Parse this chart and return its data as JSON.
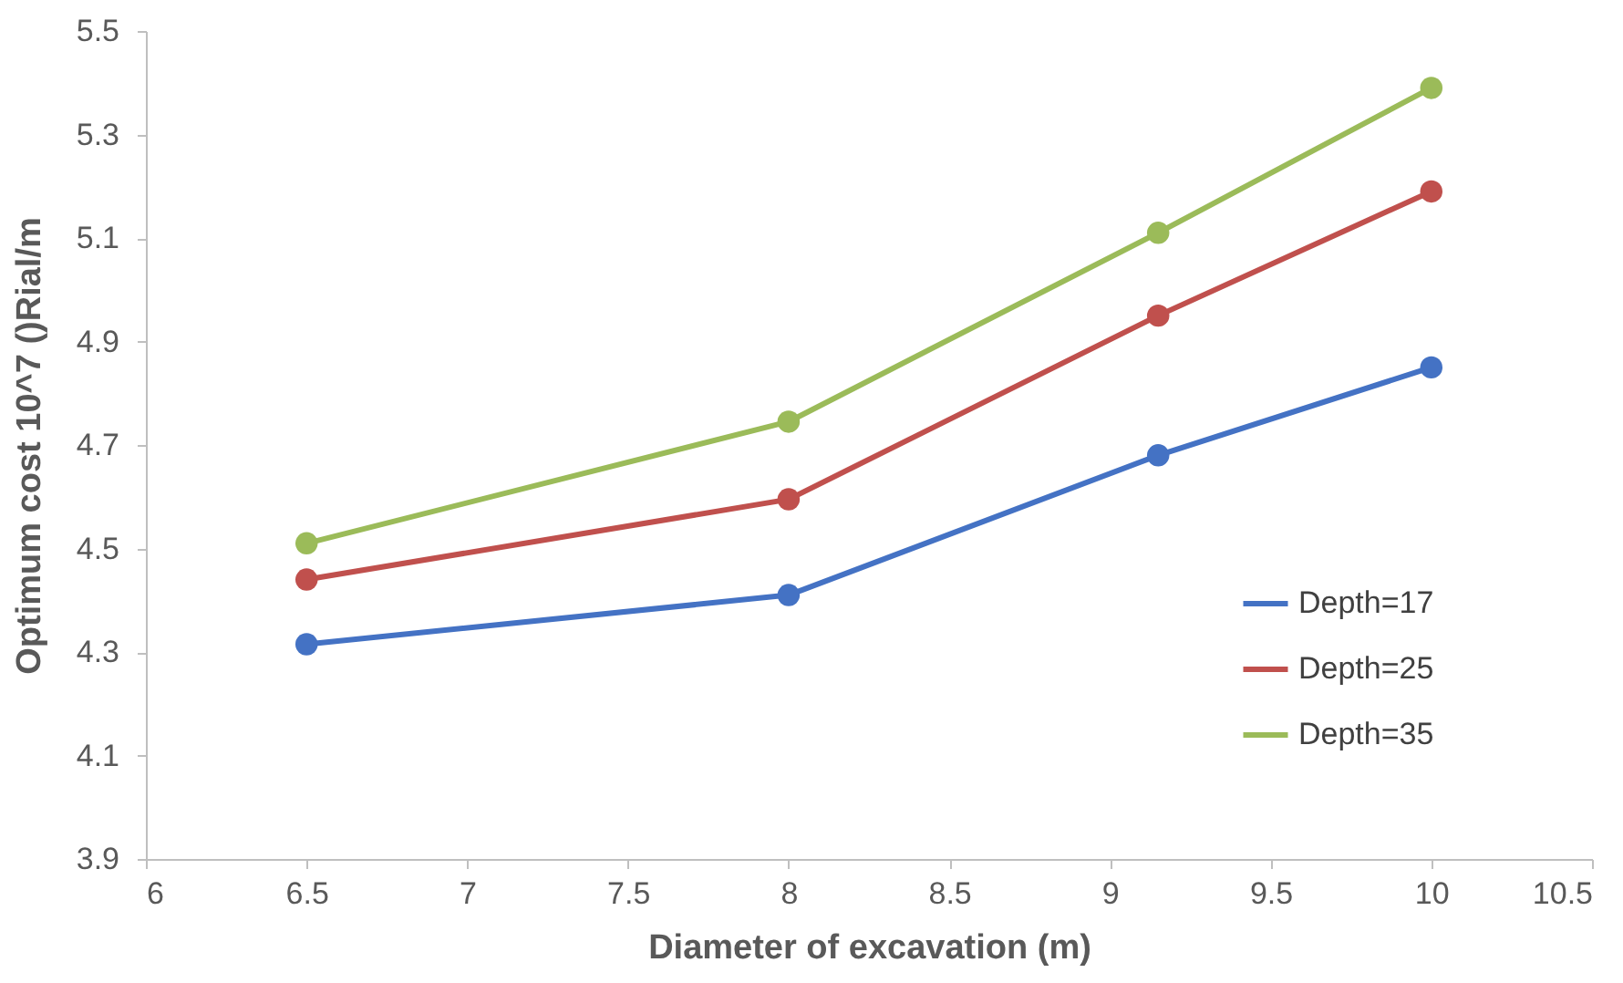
{
  "chart_data": {
    "type": "line",
    "xlabel": "Diameter of excavation (m)",
    "ylabel": "Optimum cost 10^7 ()Rial/m",
    "x": [
      6.5,
      8,
      9.15,
      10
    ],
    "series": [
      {
        "name": "Depth=17",
        "color": "#4472c4",
        "values": [
          4.315,
          4.41,
          4.68,
          4.85
        ]
      },
      {
        "name": "Depth=25",
        "color": "#c0504d",
        "values": [
          4.44,
          4.595,
          4.95,
          5.19
        ]
      },
      {
        "name": "Depth=35",
        "color": "#9bbb59",
        "values": [
          4.51,
          4.745,
          5.11,
          5.39
        ]
      }
    ],
    "xlim": [
      6,
      10.5
    ],
    "xticks": [
      6,
      6.5,
      7,
      7.5,
      8,
      8.5,
      9,
      9.5,
      10,
      10.5
    ],
    "ylim": [
      3.9,
      5.5
    ],
    "yticks": [
      3.9,
      4.1,
      4.3,
      4.5,
      4.7,
      4.9,
      5.1,
      5.3,
      5.5
    ],
    "grid": false,
    "legend": "right",
    "marker": "circle",
    "line_style": "solid"
  }
}
